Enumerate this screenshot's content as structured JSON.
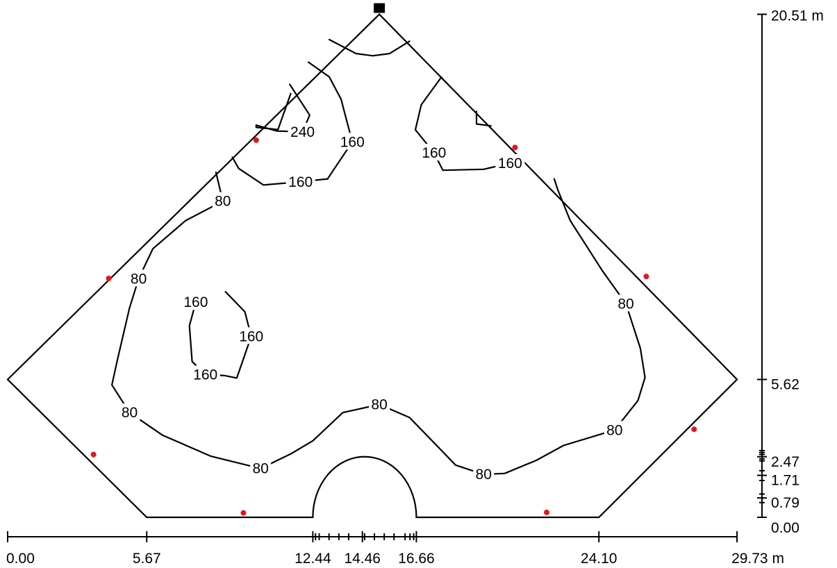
{
  "x_axis": {
    "unit": "m",
    "ticks": [
      {
        "value": 0.0,
        "label": "0.00"
      },
      {
        "value": 5.67,
        "label": "5.67"
      },
      {
        "value": 12.44,
        "label": "12.44"
      },
      {
        "value": 14.46,
        "label": "14.46"
      },
      {
        "value": 16.66,
        "label": "16.66"
      },
      {
        "value": 24.1,
        "label": "24.10"
      },
      {
        "value": 29.73,
        "label": "29.73 m"
      }
    ],
    "minor_ticks": [
      12.55,
      12.7,
      13.1,
      13.5,
      13.9,
      14.55,
      14.95,
      15.35,
      15.75,
      16.2,
      16.4,
      16.55
    ]
  },
  "y_axis": {
    "unit": "m",
    "ticks": [
      {
        "value": 0.0,
        "label": "0.00"
      },
      {
        "value": 0.79,
        "label": "0.79"
      },
      {
        "value": 1.71,
        "label": "1.71"
      },
      {
        "value": 2.47,
        "label": "2.47"
      },
      {
        "value": 5.62,
        "label": "5.62"
      },
      {
        "value": 20.51,
        "label": "20.51 m"
      }
    ],
    "minor_ticks": [
      0.6,
      0.95,
      1.5,
      1.9,
      2.3,
      2.38,
      2.56,
      2.64,
      2.72
    ]
  },
  "contour_labels": [
    {
      "text": "240",
      "x": 12.02,
      "y": 15.72
    },
    {
      "text": "160",
      "x": 14.05,
      "y": 15.31
    },
    {
      "text": "160",
      "x": 11.94,
      "y": 13.68
    },
    {
      "text": "160",
      "x": 17.38,
      "y": 14.86
    },
    {
      "text": "160",
      "x": 20.48,
      "y": 14.44
    },
    {
      "text": "80",
      "x": 8.77,
      "y": 12.89
    },
    {
      "text": "80",
      "x": 5.34,
      "y": 9.73
    },
    {
      "text": "160",
      "x": 7.67,
      "y": 8.77
    },
    {
      "text": "160",
      "x": 9.93,
      "y": 7.38
    },
    {
      "text": "160",
      "x": 8.06,
      "y": 5.82
    },
    {
      "text": "80",
      "x": 25.2,
      "y": 8.71
    },
    {
      "text": "80",
      "x": 15.15,
      "y": 4.6
    },
    {
      "text": "80",
      "x": 4.97,
      "y": 4.27
    },
    {
      "text": "80",
      "x": 24.74,
      "y": 3.56
    },
    {
      "text": "80",
      "x": 10.31,
      "y": 1.99
    },
    {
      "text": "80",
      "x": 19.4,
      "y": 1.75
    }
  ],
  "luminaires": [
    [
      4.12,
      9.74
    ],
    [
      10.13,
      15.38
    ],
    [
      20.68,
      15.08
    ],
    [
      26.03,
      9.82
    ],
    [
      3.5,
      2.56
    ],
    [
      9.61,
      0.18
    ],
    [
      21.97,
      0.2
    ],
    [
      27.98,
      3.59
    ]
  ],
  "reference_point": [
    15.15,
    20.51
  ],
  "room_outline": [
    [
      5.67,
      0
    ],
    [
      12.44,
      0
    ],
    [
      16.66,
      0
    ],
    [
      24.1,
      0
    ],
    [
      29.73,
      5.62
    ],
    [
      15.15,
      20.51
    ],
    [
      0,
      5.62
    ]
  ],
  "semicircle": {
    "left": 12.44,
    "right": 16.66,
    "bottom": 0,
    "top": 2.47
  },
  "isolines": [
    {
      "level": 80,
      "points": [
        [
          8.49,
          14.07
        ],
        [
          8.77,
          12.89
        ],
        [
          7.26,
          12.1
        ],
        [
          5.92,
          10.95
        ],
        [
          5.34,
          9.73
        ],
        [
          4.97,
          8.54
        ],
        [
          4.48,
          6.44
        ],
        [
          4.25,
          5.4
        ],
        [
          4.97,
          4.27
        ],
        [
          6.31,
          3.35
        ],
        [
          8.29,
          2.49
        ],
        [
          10.31,
          1.99
        ],
        [
          11.55,
          2.59
        ],
        [
          12.44,
          3.12
        ],
        [
          13.66,
          4.27
        ],
        [
          15.15,
          4.6
        ],
        [
          16.38,
          4.07
        ],
        [
          17.41,
          3.01
        ],
        [
          18.26,
          2.13
        ],
        [
          19.4,
          1.75
        ],
        [
          20.26,
          1.79
        ],
        [
          21.54,
          2.32
        ],
        [
          22.66,
          2.93
        ],
        [
          24.74,
          3.56
        ],
        [
          25.69,
          4.76
        ],
        [
          25.98,
          5.7
        ],
        [
          25.79,
          6.89
        ],
        [
          25.2,
          8.71
        ],
        [
          24.23,
          10.07
        ],
        [
          22.93,
          12.1
        ],
        [
          22.43,
          13.34
        ],
        [
          22.28,
          13.8
        ]
      ]
    },
    {
      "level": 160,
      "points": [
        [
          9.16,
          14.68
        ],
        [
          9.42,
          14.22
        ],
        [
          10.43,
          13.55
        ],
        [
          11.94,
          13.68
        ],
        [
          13.04,
          13.8
        ],
        [
          14.05,
          15.31
        ],
        [
          13.59,
          17.05
        ],
        [
          13.11,
          17.96
        ],
        [
          12.26,
          18.56
        ]
      ]
    },
    {
      "level": 240,
      "points": [
        [
          11.5,
          17.65
        ],
        [
          12.31,
          16.4
        ],
        [
          12.02,
          15.72
        ],
        [
          10.97,
          15.75
        ],
        [
          10.13,
          15.99
        ],
        [
          10.13,
          15.9
        ],
        [
          11.02,
          15.81
        ],
        [
          11.54,
          17.28
        ]
      ]
    },
    {
      "level": 240,
      "points": [
        [
          13.11,
          19.48
        ],
        [
          14.2,
          18.91
        ],
        [
          14.88,
          18.82
        ],
        [
          15.57,
          18.91
        ],
        [
          16.38,
          19.41
        ]
      ]
    },
    {
      "level": 160,
      "points": [
        [
          17.68,
          17.95
        ],
        [
          16.86,
          16.82
        ],
        [
          16.62,
          15.8
        ],
        [
          17.38,
          14.86
        ],
        [
          17.74,
          14.15
        ],
        [
          19.4,
          14.19
        ],
        [
          20.48,
          14.44
        ]
      ]
    },
    {
      "level": 240,
      "points": [
        [
          19.11,
          16.55
        ],
        [
          19.11,
          16.04
        ],
        [
          19.7,
          15.96
        ]
      ]
    },
    {
      "level": 160,
      "points": [
        [
          8.88,
          9.2
        ],
        [
          9.67,
          8.38
        ],
        [
          9.93,
          7.38
        ],
        [
          9.34,
          5.68
        ],
        [
          8.85,
          5.78
        ],
        [
          8.06,
          5.82
        ],
        [
          7.52,
          6.35
        ],
        [
          7.41,
          7.81
        ],
        [
          7.67,
          8.77
        ]
      ]
    }
  ]
}
